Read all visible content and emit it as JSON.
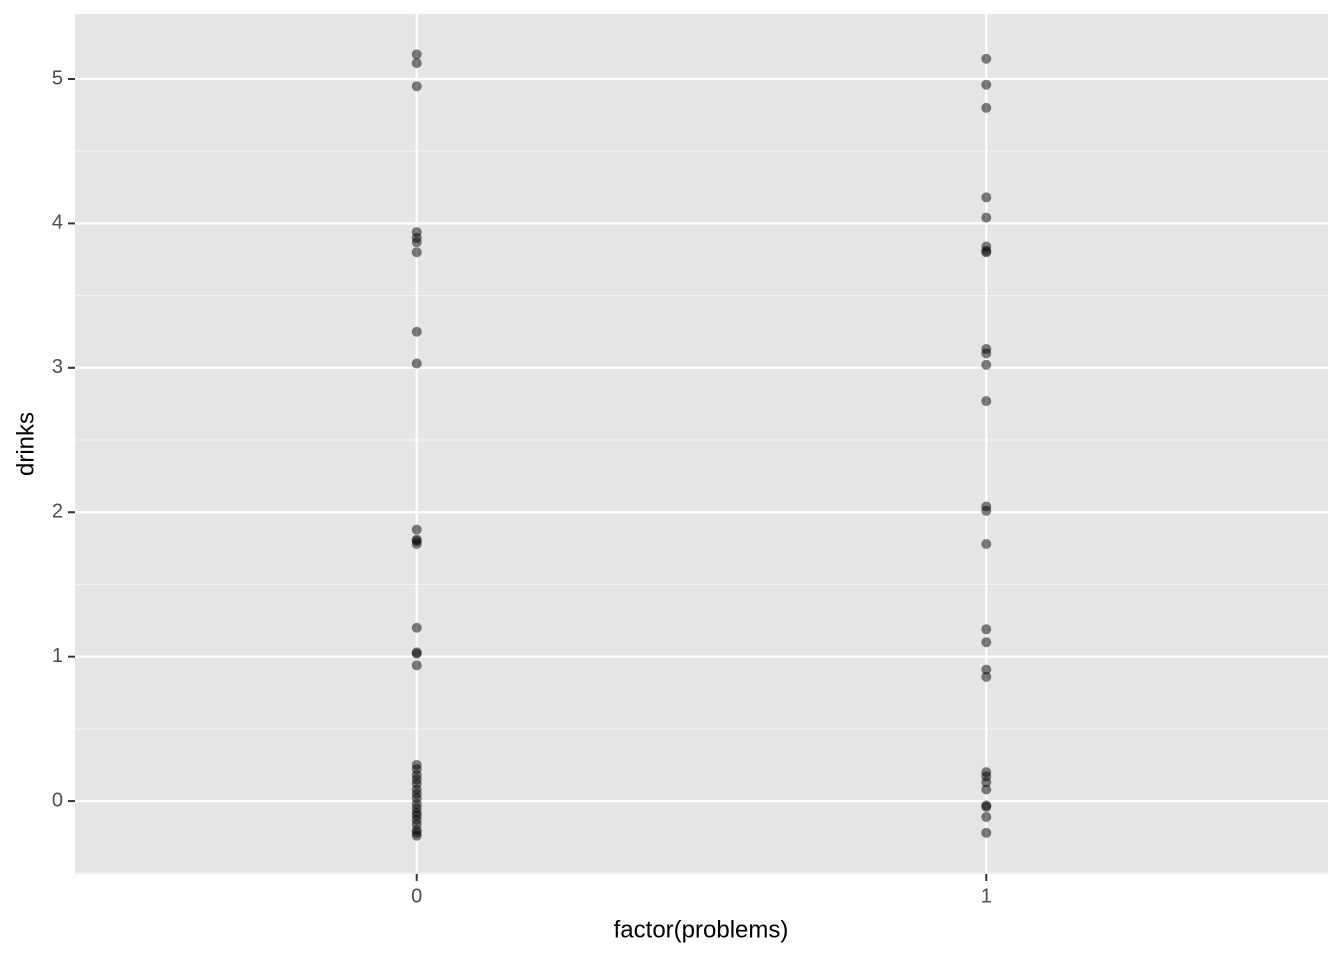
{
  "chart_data": {
    "type": "scatter",
    "x_label": "factor(problems)",
    "y_label": "drinks",
    "categories": [
      "0",
      "1"
    ],
    "values": [
      [
        5.17,
        5.11,
        4.95,
        3.94,
        3.9,
        3.87,
        3.8,
        3.25,
        3.03,
        1.88,
        1.81,
        1.8,
        1.78,
        1.2,
        1.03,
        1.02,
        0.94,
        0.25,
        0.22,
        0.18,
        0.15,
        0.12,
        0.08,
        0.05,
        0.02,
        -0.02,
        -0.05,
        -0.08,
        -0.1,
        -0.13,
        -0.16,
        -0.2,
        -0.22,
        -0.24
      ],
      [
        5.14,
        4.96,
        4.8,
        4.18,
        4.04,
        3.84,
        3.81,
        3.8,
        3.13,
        3.1,
        3.02,
        2.77,
        2.04,
        2.01,
        1.78,
        1.19,
        1.1,
        0.91,
        0.86,
        0.2,
        0.17,
        0.13,
        0.08,
        -0.03,
        -0.04,
        -0.11,
        -0.22
      ]
    ],
    "color": "#000000",
    "alpha": 0.5,
    "ylim": [
      -0.505,
      5.45
    ],
    "yticks": [
      0,
      1,
      2,
      3,
      4,
      5
    ],
    "minor_yticks": [
      -0.5,
      0.5,
      1.5,
      2.5,
      3.5,
      4.5
    ],
    "grid": true
  }
}
